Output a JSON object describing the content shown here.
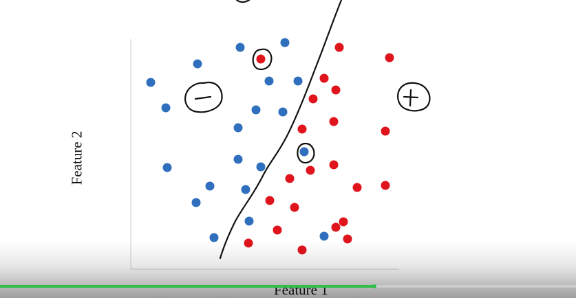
{
  "chart_data": {
    "type": "scatter",
    "title": "",
    "xlabel": "Feature 1",
    "ylabel": "Feature 2",
    "grid": false,
    "legend": "none",
    "series": [
      {
        "label_symbol": "−",
        "color": "#2f6fbd",
        "points": [
          [
            219,
            120
          ],
          [
            241,
            157
          ],
          [
            243,
            244
          ],
          [
            287,
            93
          ],
          [
            349,
            69
          ],
          [
            414,
            62
          ],
          [
            391,
            118
          ],
          [
            433,
            118
          ],
          [
            372,
            160
          ],
          [
            411,
            163
          ],
          [
            346,
            186
          ],
          [
            346,
            232
          ],
          [
            379,
            243
          ],
          [
            305,
            271
          ],
          [
            357,
            276
          ],
          [
            285,
            295
          ],
          [
            362,
            322
          ],
          [
            311,
            346
          ],
          [
            471,
            344
          ],
          [
            442,
            221
          ]
        ]
      },
      {
        "label_symbol": "+",
        "color": "#e0141c",
        "points": [
          [
            493,
            69
          ],
          [
            566,
            84
          ],
          [
            379,
            86
          ],
          [
            471,
            114
          ],
          [
            488,
            131
          ],
          [
            455,
            144
          ],
          [
            485,
            177
          ],
          [
            439,
            188
          ],
          [
            560,
            191
          ],
          [
            485,
            240
          ],
          [
            451,
            248
          ],
          [
            421,
            260
          ],
          [
            519,
            273
          ],
          [
            560,
            270
          ],
          [
            392,
            292
          ],
          [
            428,
            302
          ],
          [
            499,
            323
          ],
          [
            488,
            331
          ],
          [
            403,
            335
          ],
          [
            505,
            348
          ],
          [
            361,
            354
          ],
          [
            439,
            364
          ]
        ]
      }
    ],
    "annotations": [
      {
        "type": "circled-symbol",
        "text": "−",
        "meaning": "negative class"
      },
      {
        "type": "circled-symbol",
        "text": "+",
        "meaning": "positive class"
      },
      {
        "type": "circled-point",
        "class": "+",
        "note": "red point circled in blue region"
      },
      {
        "type": "circled-point",
        "class": "−",
        "note": "blue point circled in red region"
      },
      {
        "type": "hand-drawn-decision-boundary"
      }
    ]
  },
  "player": {
    "progress_fraction": 0.65
  }
}
